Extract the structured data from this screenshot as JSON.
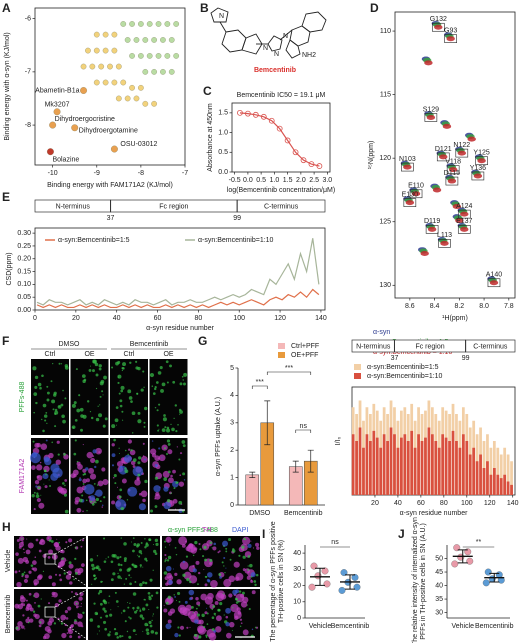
{
  "figure": {
    "panel_letters": [
      "A",
      "B",
      "C",
      "D",
      "E",
      "F",
      "G",
      "H",
      "I",
      "J"
    ],
    "b": {
      "name": "Bemcentinib",
      "atoms": [
        "N",
        "N",
        "N",
        "N",
        "NH2"
      ]
    },
    "f": {
      "conditions": [
        "DMSO",
        "Bemcentinib"
      ],
      "columns": [
        "Ctrl",
        "OE",
        "Ctrl",
        "OE"
      ],
      "rows": [
        "PFFs-488",
        "FAM171A2"
      ]
    },
    "h": {
      "channels": [
        "α-syn PFFs-488",
        "TH",
        "DAPI"
      ],
      "rows": [
        "Vehicle",
        "Bemcentinib"
      ]
    },
    "watermark": "知乎 @张冬青的号"
  },
  "chart_data": [
    {
      "type": "scatter",
      "xlabel": "Binding energy with FAM171A2 (KJ/mol)",
      "ylabel": "Binding energy with α-syn (KJ/mol)",
      "xlim": [
        -10.4,
        -7
      ],
      "ylim": [
        -8.75,
        -5.8
      ],
      "xticks": [
        -10,
        -9,
        -8,
        -7
      ],
      "yticks": [
        -6,
        -7,
        -8
      ],
      "series": [
        {
          "color": "#b9dca3",
          "x": [
            -8.4,
            -8.2,
            -8.0,
            -7.8,
            -7.6,
            -7.4,
            -7.2,
            -8.3,
            -8.1,
            -7.9,
            -7.7,
            -7.5,
            -7.3,
            -8.2,
            -8.0,
            -7.8,
            -7.6,
            -7.4,
            -7.2,
            -7.9,
            -7.7,
            -7.5,
            -7.3
          ],
          "y": [
            -6.1,
            -6.1,
            -6.1,
            -6.1,
            -6.1,
            -6.1,
            -6.1,
            -6.4,
            -6.4,
            -6.4,
            -6.4,
            -6.4,
            -6.4,
            -6.7,
            -6.7,
            -6.7,
            -6.7,
            -6.7,
            -6.7,
            -7.0,
            -7.0,
            -7.0,
            -7.0
          ]
        },
        {
          "color": "#f2d27c",
          "x": [
            -9.0,
            -8.8,
            -8.6,
            -9.2,
            -9.0,
            -8.8,
            -8.6,
            -9.3,
            -9.1,
            -8.9,
            -8.7,
            -8.5,
            -9.0,
            -8.8,
            -8.6,
            -8.4,
            -8.2,
            -8.0,
            -8.5,
            -8.3,
            -8.1,
            -7.9,
            -7.7
          ],
          "y": [
            -6.3,
            -6.3,
            -6.3,
            -6.6,
            -6.6,
            -6.6,
            -6.6,
            -6.9,
            -6.9,
            -6.9,
            -6.9,
            -6.9,
            -7.2,
            -7.2,
            -7.2,
            -7.2,
            -7.3,
            -7.3,
            -7.5,
            -7.5,
            -7.5,
            -7.6,
            -7.6
          ]
        },
        {
          "color": "#e8a050",
          "x": [
            -9.3,
            -9.9,
            -10.0,
            -9.5,
            -8.6
          ],
          "y": [
            -7.35,
            -7.75,
            -8.0,
            -8.05,
            -8.45
          ],
          "labels": [
            "Abametin-B1a",
            "Mk3207",
            "Dihydroergocristine",
            "Dihydroergotamine",
            "OSU-03012"
          ]
        },
        {
          "color": "#c0392b",
          "x": [
            -10.05
          ],
          "y": [
            -8.5
          ],
          "labels": [
            "Bolazine"
          ]
        }
      ]
    },
    {
      "type": "line",
      "title": "Bemcentinib IC50 = 19.1 μM",
      "ylabel": "Absorbance at 450nm",
      "xlabel": "log(Bemcentinib concentration/μM)",
      "xlim": [
        -0.6,
        3.1
      ],
      "ylim": [
        0,
        1.75
      ],
      "xticks": [
        -0.5,
        {
          "value": 0,
          "label": "0.0"
        },
        0.5,
        {
          "value": 1,
          "label": "1.0"
        },
        1.5,
        {
          "value": 2,
          "label": "2.0"
        },
        2.5,
        {
          "value": 3,
          "label": "3.0"
        }
      ],
      "yticks": [
        {
          "value": 0,
          "label": "0.0"
        },
        0.5,
        {
          "value": 1,
          "label": "1.0"
        },
        1.5
      ],
      "markers": true,
      "series": [
        {
          "color": "#d9534f",
          "x": [
            -0.3,
            0,
            0.3,
            0.6,
            0.9,
            1.2,
            1.5,
            1.8,
            2.1,
            2.4,
            2.7
          ],
          "values": [
            1.5,
            1.48,
            1.45,
            1.4,
            1.3,
            1.1,
            0.8,
            0.5,
            0.3,
            0.2,
            0.15
          ]
        }
      ]
    },
    {
      "type": "scatter",
      "peaks": true,
      "xlabel": "¹H(ppm)",
      "ylabel": "¹⁵N(ppm)",
      "xlim": [
        8.72,
        7.75
      ],
      "ylim": [
        131,
        108.5
      ],
      "xticks": [
        8.6,
        8.4,
        8.2,
        {
          "value": 8,
          "label": "8.0"
        },
        7.8
      ],
      "yticks": [
        110,
        115,
        120,
        125,
        130
      ],
      "legend": "bottom-left",
      "peak_labels": [
        "G132",
        "G93",
        "S129",
        "N122",
        "Y125",
        "D121",
        "N103",
        "V118",
        "Y136",
        "D115",
        "E110",
        "E130",
        "A124",
        "E137",
        "D119",
        "L113",
        "A140"
      ],
      "series": [
        {
          "name": "α-syn",
          "color": "#2b3a8f",
          "x": [
            8.39,
            8.29,
            8.45,
            8.2,
            8.04,
            8.35,
            8.64,
            8.27,
            8.07,
            8.28,
            8.57,
            8.62,
            8.18,
            8.18,
            8.44,
            8.34,
            7.94,
            8.4,
            8.47,
            8.32,
            8.12,
            8.24,
            8.5,
            8.22
          ],
          "y": [
            109.4,
            110.3,
            116.5,
            119.3,
            119.9,
            119.6,
            120.4,
            120.6,
            121.1,
            121.5,
            122.5,
            123.2,
            124.1,
            125.3,
            125.3,
            126.4,
            129.5,
            122.2,
            112.2,
            117.2,
            118.2,
            123.5,
            127.2,
            124.6
          ]
        },
        {
          "name": "α-syn:Bemcentinib = 1:5",
          "color": "#3aa040",
          "x": [
            8.38,
            8.28,
            8.44,
            8.19,
            8.03,
            8.34,
            8.63,
            8.26,
            8.06,
            8.27,
            8.56,
            8.61,
            8.17,
            8.17,
            8.43,
            8.33,
            7.93,
            8.39,
            8.46,
            8.31,
            8.11,
            8.23,
            8.49,
            8.21
          ],
          "y": [
            109.5,
            110.4,
            116.6,
            119.4,
            120.0,
            119.7,
            120.5,
            120.7,
            121.2,
            121.6,
            122.6,
            123.3,
            124.2,
            125.4,
            125.4,
            126.5,
            129.6,
            122.3,
            112.3,
            117.3,
            118.3,
            123.6,
            127.3,
            124.7
          ]
        },
        {
          "name": "α-syn:Bemcentinib = 1:10",
          "color": "#c0282a",
          "x": [
            8.37,
            8.27,
            8.43,
            8.18,
            8.02,
            8.33,
            8.62,
            8.25,
            8.05,
            8.26,
            8.55,
            8.6,
            8.16,
            8.16,
            8.42,
            8.32,
            7.92,
            8.38,
            8.45,
            8.3,
            8.1,
            8.22,
            8.48,
            8.2
          ],
          "y": [
            109.7,
            110.6,
            116.8,
            119.6,
            120.2,
            119.9,
            120.7,
            120.9,
            121.4,
            121.8,
            122.8,
            123.5,
            124.4,
            125.6,
            125.6,
            126.7,
            129.8,
            122.5,
            112.5,
            117.5,
            118.5,
            123.8,
            127.5,
            124.9
          ]
        }
      ]
    },
    {
      "type": "line",
      "ylabel": "CSD(ppm)",
      "xlabel": "α-syn residue number",
      "xlim": [
        0,
        142
      ],
      "ylim": [
        0,
        0.32
      ],
      "xticks": [
        0,
        20,
        40,
        60,
        80,
        100,
        120,
        140
      ],
      "yticks": [
        {
          "value": 0,
          "label": "0.00"
        },
        {
          "value": 0.05,
          "label": "0.05"
        },
        {
          "value": 0.1,
          "label": "0.10"
        },
        {
          "value": 0.15,
          "label": "0.15"
        },
        {
          "value": 0.2,
          "label": "0.20"
        },
        {
          "value": 0.25,
          "label": "0.25"
        },
        {
          "value": 0.3,
          "label": "0.30"
        }
      ],
      "regions": [
        "N-terminus",
        "Fc region",
        "C-terminus"
      ],
      "region_bounds": [
        37,
        99
      ],
      "x": [
        1,
        4,
        7,
        10,
        13,
        16,
        19,
        22,
        25,
        28,
        31,
        34,
        37,
        40,
        43,
        46,
        49,
        52,
        55,
        58,
        61,
        64,
        67,
        70,
        73,
        76,
        79,
        82,
        85,
        88,
        91,
        94,
        97,
        100,
        103,
        106,
        109,
        112,
        115,
        118,
        121,
        124,
        127,
        130,
        133,
        136,
        139
      ],
      "series": [
        {
          "name": "α-syn:Bemcentinib=1:5",
          "color": "#e0704a",
          "values": [
            0.02,
            0.01,
            0.02,
            0.01,
            0.02,
            0.01,
            0.01,
            0.02,
            0.01,
            0.02,
            0.01,
            0.02,
            0.01,
            0.01,
            0.02,
            0.01,
            0.02,
            0.01,
            0.02,
            0.01,
            0.01,
            0.02,
            0.01,
            0.02,
            0.01,
            0.02,
            0.01,
            0.02,
            0.01,
            0.02,
            0.03,
            0.02,
            0.03,
            0.02,
            0.03,
            0.04,
            0.03,
            0.02,
            0.04,
            0.05,
            0.04,
            0.06,
            0.05,
            0.07,
            0.05,
            0.08,
            0.06
          ]
        },
        {
          "name": "α-syn:Bemcentinib=1:10",
          "color": "#a7b59a",
          "values": [
            0.03,
            0.02,
            0.04,
            0.03,
            0.03,
            0.02,
            0.03,
            0.04,
            0.02,
            0.03,
            0.02,
            0.04,
            0.03,
            0.02,
            0.03,
            0.02,
            0.04,
            0.03,
            0.03,
            0.02,
            0.03,
            0.04,
            0.02,
            0.03,
            0.03,
            0.04,
            0.03,
            0.03,
            0.04,
            0.05,
            0.04,
            0.05,
            0.06,
            0.05,
            0.06,
            0.08,
            0.07,
            0.06,
            0.12,
            0.1,
            0.14,
            0.18,
            0.12,
            0.22,
            0.15,
            0.28,
            0.1
          ]
        }
      ]
    },
    {
      "type": "bar",
      "ylabel": "α-syn PFFs uptake (A.U.)",
      "categories": [
        "DMSO",
        "Bemcentinib"
      ],
      "ylim": [
        0,
        5
      ],
      "yticks": [
        0,
        1,
        2,
        3,
        4,
        5
      ],
      "annotations": [
        "***",
        "***",
        "ns"
      ],
      "series": [
        {
          "name": "Ctrl+PFF",
          "color": "#f4b8b8",
          "values": [
            1.1,
            1.4
          ],
          "errors": [
            0.1,
            0.2
          ]
        },
        {
          "name": "OE+PFF",
          "color": "#e89a3c",
          "values": [
            3.0,
            1.6
          ],
          "errors": [
            0.8,
            0.4
          ]
        }
      ]
    },
    {
      "type": "bar",
      "ylabel": "I/I₀",
      "xlabel": "α-syn residue number",
      "xlim": [
        0,
        142
      ],
      "ylim": [
        0,
        1.6
      ],
      "xticks": [
        20,
        40,
        60,
        80,
        100,
        120,
        140
      ],
      "regions": [
        "N-terminus",
        "Fc region",
        "C-terminus"
      ],
      "region_bounds": [
        37,
        99
      ],
      "x": [
        1,
        4,
        7,
        10,
        13,
        16,
        19,
        22,
        25,
        28,
        31,
        34,
        37,
        40,
        43,
        46,
        49,
        52,
        55,
        58,
        61,
        64,
        67,
        70,
        73,
        76,
        79,
        82,
        85,
        88,
        91,
        94,
        97,
        100,
        103,
        106,
        109,
        112,
        115,
        118,
        121,
        124,
        127,
        130,
        133,
        136,
        139
      ],
      "series": [
        {
          "name": "α-syn:Bemcentinib=1:5",
          "color": "#f2cfa6",
          "values": [
            1.3,
            1.2,
            1.4,
            1.1,
            1.3,
            1.2,
            1.35,
            1.25,
            1.1,
            1.3,
            1.2,
            1.4,
            1.3,
            1.1,
            1.25,
            1.3,
            1.2,
            1.35,
            1.1,
            1.3,
            1.2,
            1.25,
            1.4,
            1.3,
            1.2,
            1.1,
            1.3,
            1.25,
            1.2,
            1.35,
            1.2,
            1.1,
            1.3,
            1.2,
            1.0,
            1.1,
            0.9,
            1.0,
            0.8,
            0.9,
            0.7,
            0.8,
            0.7,
            0.6,
            0.7,
            0.6,
            0.5
          ]
        },
        {
          "name": "α-syn:Bemcentinib=1:10",
          "color": "#d9503f",
          "values": [
            0.9,
            0.8,
            1.0,
            0.7,
            0.9,
            0.8,
            0.95,
            0.85,
            0.7,
            0.9,
            0.8,
            1.0,
            0.9,
            0.7,
            0.85,
            0.9,
            0.8,
            0.95,
            0.7,
            0.9,
            0.8,
            0.85,
            1.0,
            0.9,
            0.8,
            0.7,
            0.9,
            0.85,
            0.8,
            0.95,
            0.8,
            0.7,
            0.9,
            0.8,
            0.6,
            0.7,
            0.5,
            0.6,
            0.4,
            0.5,
            0.3,
            0.4,
            0.3,
            0.25,
            0.3,
            0.2,
            0.15
          ]
        }
      ]
    },
    {
      "type": "dot",
      "ylabel": [
        "The percentage of α-syn PFFs positive",
        "TH-positive cells in SN (%)"
      ],
      "categories": [
        "Vehicle",
        "Bemcentinib"
      ],
      "ylim": [
        0,
        45
      ],
      "yticks": [
        0,
        10,
        20,
        30,
        40
      ],
      "annotations": [
        "ns"
      ],
      "groups": [
        {
          "color": "#e89aa8",
          "values": [
            32,
            29,
            26,
            21,
            19
          ],
          "mean": 25.4,
          "error": 5.3
        },
        {
          "color": "#5b9bd5",
          "values": [
            28,
            25,
            22,
            19,
            17
          ],
          "mean": 22.2,
          "error": 4.4
        }
      ]
    },
    {
      "type": "dot",
      "ylabel": [
        "The relative intensity of internalized α-syn",
        "PFFs in TH-positive cells in SN (A.U.)"
      ],
      "categories": [
        "Vehicle",
        "Bemcentinib"
      ],
      "ylim": [
        28,
        55
      ],
      "yticks": [
        30,
        35,
        40,
        45,
        50
      ],
      "annotations": [
        "**"
      ],
      "groups": [
        {
          "color": "#e89aa8",
          "values": [
            54,
            52.5,
            50.5,
            49,
            48
          ],
          "mean": 50.8,
          "error": 2.4
        },
        {
          "color": "#5b9bd5",
          "values": [
            45,
            44,
            42.5,
            42,
            41
          ],
          "mean": 42.9,
          "error": 1.6
        }
      ]
    }
  ]
}
